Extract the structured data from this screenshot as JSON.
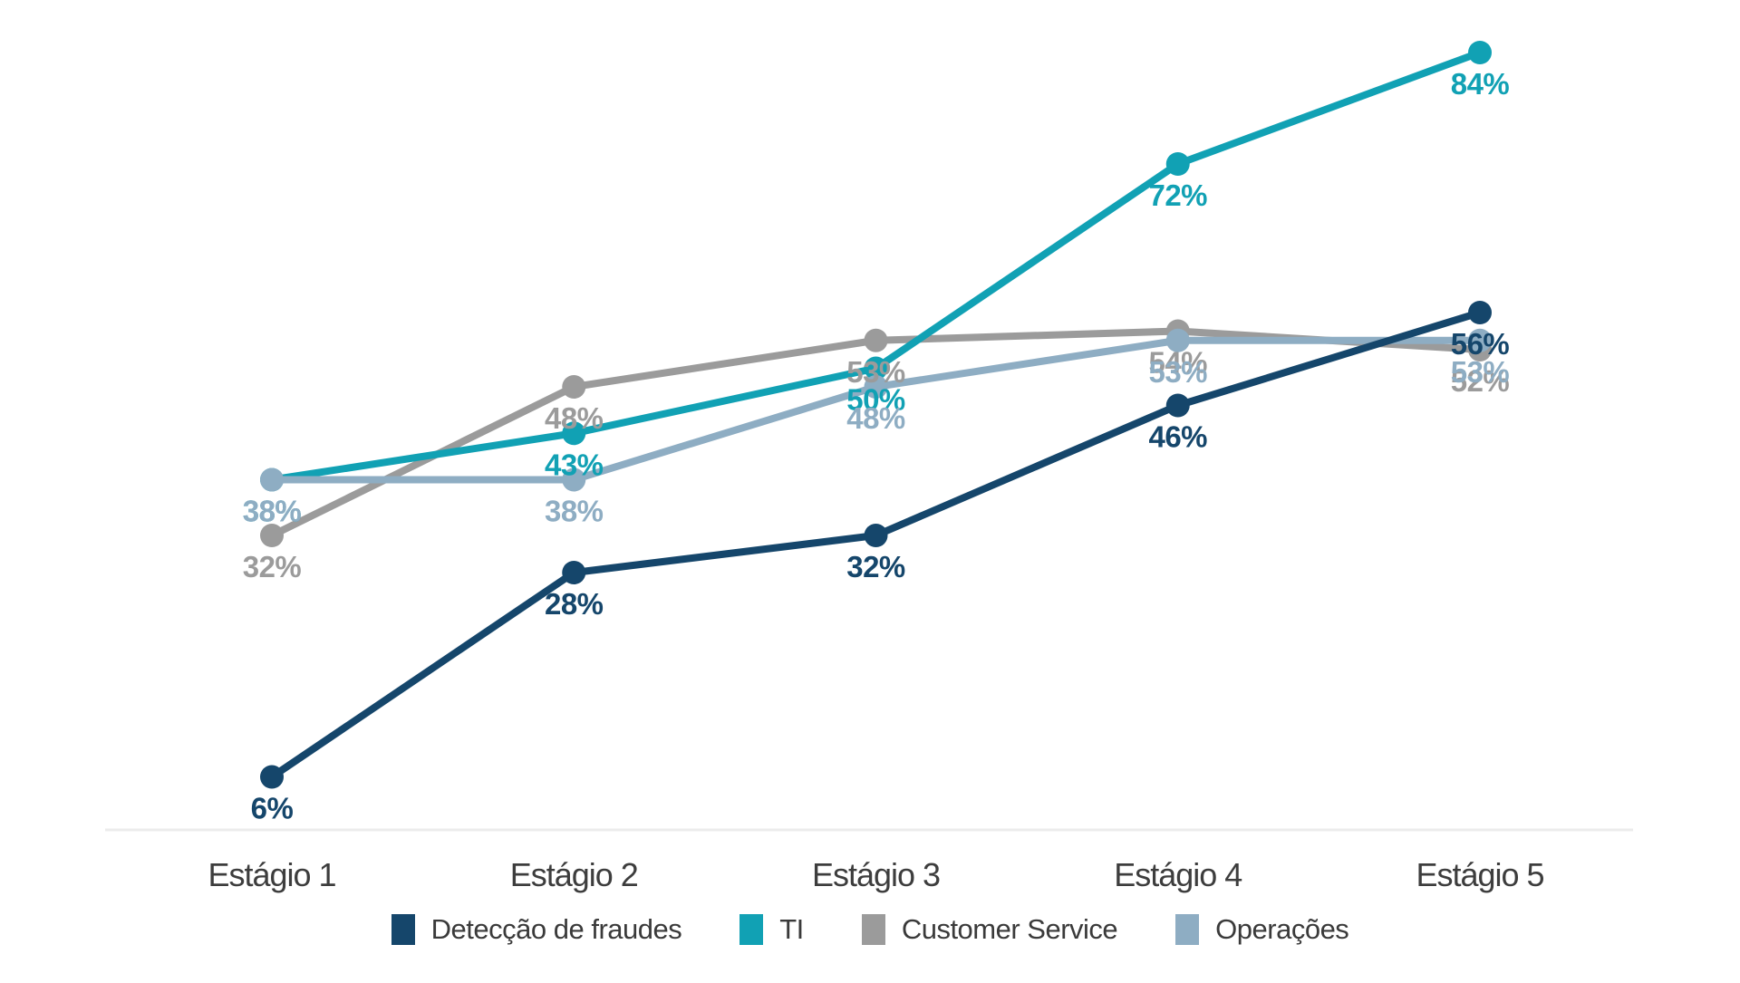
{
  "chart_data": {
    "type": "line",
    "title": "",
    "categories": [
      "Estágio 1",
      "Estágio 2",
      "Estágio 3",
      "Estágio 4",
      "Estágio 5"
    ],
    "series": [
      {
        "name": "Detecção de fraudes",
        "color": "#15466b",
        "values": [
          6,
          28,
          32,
          46,
          56
        ],
        "point_labels": [
          "6%",
          "28%",
          "32%",
          "46%",
          "56%"
        ]
      },
      {
        "name": "TI",
        "color": "#11a1b4",
        "values": [
          38,
          43,
          50,
          72,
          84
        ],
        "point_labels": [
          "38%",
          "43%",
          "50%",
          "72%",
          "84%"
        ]
      },
      {
        "name": "Customer Service",
        "color": "#9b9b9b",
        "values": [
          32,
          48,
          53,
          54,
          52
        ],
        "point_labels": [
          "32%",
          "48%",
          "53%",
          "54%",
          "52%"
        ]
      },
      {
        "name": "Operações",
        "color": "#8eadc3",
        "values": [
          38,
          38,
          48,
          53,
          53
        ],
        "point_labels": [
          "38%",
          "38%",
          "48%",
          "53%",
          "53%"
        ]
      }
    ],
    "draw_order": [
      2,
      1,
      3,
      0
    ],
    "ylim": [
      0,
      90
    ],
    "grid": false,
    "x_axis_line_color": "#ececec",
    "x_axis_label_color": "#3d3d3d",
    "legend_position": "bottom",
    "point_label_position": "below"
  }
}
